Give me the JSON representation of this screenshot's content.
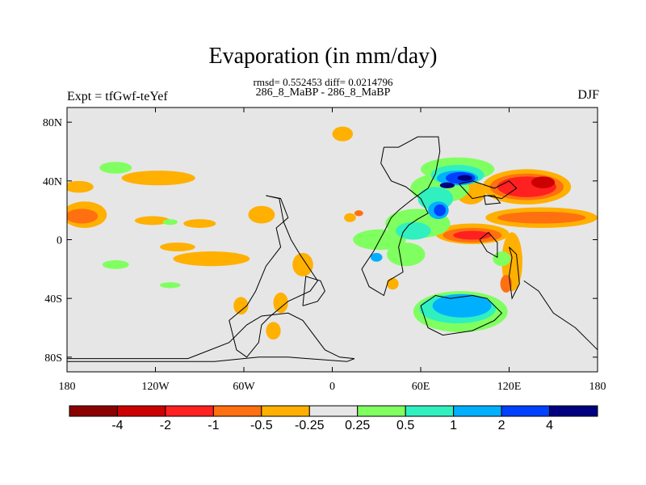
{
  "chart_data": {
    "type": "heatmap",
    "title": "Evaporation (in mm/day)",
    "stats_line": "rmsd= 0.552453 diff= 0.0214796",
    "period_line": "286_8_MaBP - 286_8_MaBP",
    "left_label": "Expt = tfGwf-teYef",
    "right_label": "DJF",
    "x_ticks": [
      {
        "value": -180,
        "label": "180"
      },
      {
        "value": -120,
        "label": "120W"
      },
      {
        "value": -60,
        "label": "60W"
      },
      {
        "value": 0,
        "label": "0"
      },
      {
        "value": 60,
        "label": "60E"
      },
      {
        "value": 120,
        "label": "120E"
      },
      {
        "value": 180,
        "label": "180"
      }
    ],
    "y_ticks": [
      {
        "value": 80,
        "label": "80N"
      },
      {
        "value": 40,
        "label": "40N"
      },
      {
        "value": 0,
        "label": "0"
      },
      {
        "value": -40,
        "label": "40S"
      },
      {
        "value": -80,
        "label": "80S"
      }
    ],
    "xlim": [
      -180,
      180
    ],
    "ylim": [
      -90,
      90
    ],
    "grid": false,
    "background_color": "#e6e6e6",
    "colorbar": {
      "colors": [
        "#8b0000",
        "#cc0000",
        "#ff2020",
        "#ff7010",
        "#ffb000",
        "#e6e6e6",
        "#80ff60",
        "#30f0c0",
        "#00b0ff",
        "#0040ff",
        "#000080"
      ],
      "labels": [
        {
          "boundary": 1,
          "label": "-4"
        },
        {
          "boundary": 2,
          "label": "-2"
        },
        {
          "boundary": 3,
          "label": "-1"
        },
        {
          "boundary": 4,
          "label": "-0.5"
        },
        {
          "boundary": 5,
          "label": "-0.25"
        },
        {
          "boundary": 6,
          "label": "0.25"
        },
        {
          "boundary": 7,
          "label": "0.5"
        },
        {
          "boundary": 8,
          "label": "1"
        },
        {
          "boundary": 9,
          "label": "2"
        },
        {
          "boundary": 10,
          "label": "4"
        }
      ]
    },
    "regions": [
      {
        "level": "-0.25",
        "color": "#ffb000",
        "lon": 7,
        "lat": 72,
        "rlon": 7,
        "rlat": 5
      },
      {
        "level": "-0.25",
        "color": "#ffb000",
        "lon": -118,
        "lat": 42,
        "rlon": 25,
        "rlat": 5
      },
      {
        "level": "-0.25",
        "color": "#ffb000",
        "lon": -172,
        "lat": 36,
        "rlon": 10,
        "rlat": 4
      },
      {
        "level": "-0.25",
        "color": "#ffb000",
        "lon": -168,
        "lat": 17,
        "rlon": 15,
        "rlat": 9
      },
      {
        "level": "-0.5",
        "color": "#ff7010",
        "lon": -170,
        "lat": 16,
        "rlon": 11,
        "rlat": 5
      },
      {
        "level": "-0.25",
        "color": "#ffb000",
        "lon": -122,
        "lat": 13,
        "rlon": 12,
        "rlat": 3
      },
      {
        "level": "-0.25",
        "color": "#ffb000",
        "lon": -90,
        "lat": 11,
        "rlon": 11,
        "rlat": 3
      },
      {
        "level": "-0.25",
        "color": "#ffb000",
        "lon": -48,
        "lat": 17,
        "rlon": 9,
        "rlat": 6
      },
      {
        "level": "-0.25",
        "color": "#ffb000",
        "lon": -82,
        "lat": -13,
        "rlon": 26,
        "rlat": 5
      },
      {
        "level": "-0.25",
        "color": "#ffb000",
        "lon": -105,
        "lat": -5,
        "rlon": 12,
        "rlat": 3
      },
      {
        "level": "-0.25",
        "color": "#ffb000",
        "lon": -20,
        "lat": -17,
        "rlon": 7,
        "rlat": 8
      },
      {
        "level": "-0.25",
        "color": "#ffb000",
        "lon": -62,
        "lat": -45,
        "rlon": 5,
        "rlat": 6
      },
      {
        "level": "-0.25",
        "color": "#ffb000",
        "lon": -35,
        "lat": -43,
        "rlon": 5,
        "rlat": 7
      },
      {
        "level": "-0.25",
        "color": "#ffb000",
        "lon": -40,
        "lat": -62,
        "rlon": 5,
        "rlat": 6
      },
      {
        "level": "-0.25",
        "color": "#ffb000",
        "lon": 12,
        "lat": 15,
        "rlon": 4,
        "rlat": 3
      },
      {
        "level": "-0.5",
        "color": "#ff7010",
        "lon": 18,
        "lat": 18,
        "rlon": 3,
        "rlat": 2
      },
      {
        "level": "-0.25",
        "color": "#ffb000",
        "lon": 41,
        "lat": -30,
        "rlon": 4,
        "rlat": 4
      },
      {
        "level": "-0.25",
        "color": "#ffb000",
        "lon": 94,
        "lat": 32,
        "rlon": 10,
        "rlat": 8
      },
      {
        "level": "-0.25",
        "color": "#ffb000",
        "lon": 142,
        "lat": 15,
        "rlon": 38,
        "rlat": 7
      },
      {
        "level": "-0.5",
        "color": "#ff7010",
        "lon": 142,
        "lat": 15,
        "rlon": 30,
        "rlat": 4
      },
      {
        "level": "-0.25",
        "color": "#ffb000",
        "lon": 95,
        "lat": 4,
        "rlon": 25,
        "rlat": 7
      },
      {
        "level": "-0.5",
        "color": "#ff7010",
        "lon": 95,
        "lat": 3,
        "rlon": 20,
        "rlat": 5
      },
      {
        "level": "-1",
        "color": "#ff2020",
        "lon": 95,
        "lat": 3,
        "rlon": 13,
        "rlat": 3
      },
      {
        "level": "-0.25",
        "color": "#ffb000",
        "lon": 122,
        "lat": -15,
        "rlon": 7,
        "rlat": 20
      },
      {
        "level": "-0.5",
        "color": "#ff7010",
        "lon": 118,
        "lat": -30,
        "rlon": 4,
        "rlat": 6
      },
      {
        "level": "-0.25",
        "color": "#ffb000",
        "lon": 132,
        "lat": 36,
        "rlon": 30,
        "rlat": 12
      },
      {
        "level": "-0.5",
        "color": "#ff7010",
        "lon": 132,
        "lat": 36,
        "rlon": 25,
        "rlat": 9
      },
      {
        "level": "-1",
        "color": "#ff2020",
        "lon": 132,
        "lat": 36,
        "rlon": 20,
        "rlat": 7
      },
      {
        "level": "-2",
        "color": "#cc0000",
        "lon": 143,
        "lat": 39,
        "rlon": 8,
        "rlat": 4
      },
      {
        "level": "-0.25",
        "color": "#ffb000",
        "lon": 123,
        "lat": -3,
        "rlon": 3,
        "rlat": 2
      },
      {
        "level": "0.25",
        "color": "#80ff60",
        "lon": 32,
        "lat": 0,
        "rlon": 18,
        "rlat": 7
      },
      {
        "level": "0.25",
        "color": "#80ff60",
        "lon": -147,
        "lat": 49,
        "rlon": 11,
        "rlat": 4
      },
      {
        "level": "0.25",
        "color": "#80ff60",
        "lon": -147,
        "lat": -17,
        "rlon": 9,
        "rlat": 3
      },
      {
        "level": "0.25",
        "color": "#80ff60",
        "lon": -110,
        "lat": -31,
        "rlon": 7,
        "rlat": 2
      },
      {
        "level": "0.25",
        "color": "#80ff60",
        "lon": -110,
        "lat": 12,
        "rlon": 5,
        "rlat": 2
      },
      {
        "level": "0.25",
        "color": "#80ff60",
        "lon": 115,
        "lat": -13,
        "rlon": 6,
        "rlat": 5
      },
      {
        "level": "0.25",
        "color": "#80ff60",
        "lon": 85,
        "lat": 48,
        "rlon": 25,
        "rlat": 8
      },
      {
        "level": "0.25",
        "color": "#80ff60",
        "lon": 73,
        "lat": 35,
        "rlon": 20,
        "rlat": 10
      },
      {
        "level": "0.25",
        "color": "#80ff60",
        "lon": 58,
        "lat": 11,
        "rlon": 22,
        "rlat": 10
      },
      {
        "level": "0.25",
        "color": "#80ff60",
        "lon": 50,
        "lat": -10,
        "rlon": 13,
        "rlat": 8
      },
      {
        "level": "0.25",
        "color": "#80ff60",
        "lon": 87,
        "lat": -49,
        "rlon": 32,
        "rlat": 14
      },
      {
        "level": "0.5",
        "color": "#30f0c0",
        "lon": 85,
        "lat": 44,
        "rlon": 18,
        "rlat": 7
      },
      {
        "level": "0.5",
        "color": "#30f0c0",
        "lon": 70,
        "lat": 28,
        "rlon": 12,
        "rlat": 8
      },
      {
        "level": "0.5",
        "color": "#30f0c0",
        "lon": 55,
        "lat": 6,
        "rlon": 12,
        "rlat": 6
      },
      {
        "level": "0.5",
        "color": "#30f0c0",
        "lon": 85,
        "lat": -47,
        "rlon": 26,
        "rlat": 10
      },
      {
        "level": "1",
        "color": "#00b0ff",
        "lon": 85,
        "lat": 42,
        "rlon": 14,
        "rlat": 5
      },
      {
        "level": "1",
        "color": "#00b0ff",
        "lon": 72,
        "lat": 20,
        "rlon": 7,
        "rlat": 6
      },
      {
        "level": "1",
        "color": "#00b0ff",
        "lon": 88,
        "lat": -45,
        "rlon": 20,
        "rlat": 8
      },
      {
        "level": "1",
        "color": "#00b0ff",
        "lon": 30,
        "lat": -12,
        "rlon": 4,
        "rlat": 3
      },
      {
        "level": "2",
        "color": "#0040ff",
        "lon": 87,
        "lat": 42,
        "rlon": 10,
        "rlat": 4
      },
      {
        "level": "2",
        "color": "#0040ff",
        "lon": 73,
        "lat": 20,
        "rlon": 4,
        "rlat": 4
      },
      {
        "level": "4",
        "color": "#000080",
        "lon": 90,
        "lat": 42,
        "rlon": 5,
        "rlat": 2
      },
      {
        "level": "4",
        "color": "#000080",
        "lon": 78,
        "lat": 37,
        "rlon": 5,
        "rlat": 2
      }
    ],
    "coastlines": [
      [
        [
          -180,
          -81
        ],
        [
          -98,
          -81
        ],
        [
          -70,
          -70
        ],
        [
          -58,
          -58
        ],
        [
          -48,
          -52
        ],
        [
          -30,
          -50
        ],
        [
          -20,
          -55
        ],
        [
          -5,
          -75
        ],
        [
          5,
          -80
        ],
        [
          15,
          -81
        ],
        [
          10,
          -83
        ],
        [
          -30,
          -80
        ],
        [
          -50,
          -80
        ],
        [
          -80,
          -83
        ],
        [
          -180,
          -83
        ]
      ],
      [
        [
          -45,
          30
        ],
        [
          -35,
          28
        ],
        [
          -30,
          15
        ],
        [
          -38,
          8
        ],
        [
          -35,
          -5
        ],
        [
          -45,
          -18
        ],
        [
          -52,
          -35
        ],
        [
          -58,
          -45
        ],
        [
          -70,
          -55
        ],
        [
          -65,
          -75
        ],
        [
          -58,
          -80
        ],
        [
          -50,
          -70
        ],
        [
          -48,
          -58
        ],
        [
          -42,
          -52
        ],
        [
          -30,
          -42
        ],
        [
          -15,
          -35
        ],
        [
          -10,
          -28
        ],
        [
          -22,
          -10
        ],
        [
          -28,
          0
        ],
        [
          -33,
          12
        ],
        [
          -36,
          28
        ],
        [
          -45,
          30
        ]
      ],
      [
        [
          35,
          63
        ],
        [
          45,
          63
        ],
        [
          58,
          70
        ],
        [
          72,
          70
        ],
        [
          73,
          60
        ],
        [
          70,
          45
        ],
        [
          65,
          35
        ],
        [
          55,
          28
        ],
        [
          50,
          24
        ],
        [
          45,
          20
        ],
        [
          40,
          15
        ],
        [
          35,
          5
        ],
        [
          28,
          -8
        ],
        [
          20,
          -20
        ],
        [
          25,
          -32
        ],
        [
          35,
          -38
        ],
        [
          38,
          -28
        ],
        [
          48,
          -22
        ],
        [
          45,
          -5
        ],
        [
          48,
          5
        ],
        [
          52,
          10
        ],
        [
          58,
          14
        ],
        [
          65,
          18
        ],
        [
          60,
          28
        ],
        [
          50,
          36
        ],
        [
          40,
          40
        ],
        [
          33,
          52
        ],
        [
          35,
          63
        ]
      ],
      [
        [
          -20,
          -45
        ],
        [
          -10,
          -42
        ],
        [
          -5,
          -35
        ],
        [
          -8,
          -28
        ],
        [
          -18,
          -25
        ],
        [
          -20,
          -45
        ]
      ],
      [
        [
          60,
          -45
        ],
        [
          65,
          -60
        ],
        [
          75,
          -65
        ],
        [
          95,
          -62
        ],
        [
          110,
          -55
        ],
        [
          115,
          -50
        ],
        [
          105,
          -40
        ],
        [
          95,
          -38
        ],
        [
          80,
          -40
        ],
        [
          70,
          -38
        ],
        [
          60,
          -45
        ]
      ],
      [
        [
          100,
          0
        ],
        [
          105,
          -8
        ],
        [
          112,
          -12
        ],
        [
          112,
          -2
        ],
        [
          106,
          5
        ],
        [
          100,
          0
        ]
      ],
      [
        [
          120,
          -5
        ],
        [
          125,
          -10
        ],
        [
          127,
          -30
        ],
        [
          122,
          -40
        ],
        [
          120,
          -25
        ],
        [
          122,
          -12
        ],
        [
          120,
          -5
        ]
      ],
      [
        [
          86,
          38
        ],
        [
          95,
          40
        ],
        [
          110,
          35
        ],
        [
          120,
          40
        ],
        [
          125,
          35
        ],
        [
          115,
          28
        ],
        [
          105,
          30
        ],
        [
          95,
          28
        ],
        [
          86,
          38
        ]
      ],
      [
        [
          103,
          30
        ],
        [
          110,
          30
        ],
        [
          114,
          25
        ],
        [
          104,
          24
        ],
        [
          103,
          30
        ]
      ],
      [
        [
          130,
          -28
        ],
        [
          140,
          -35
        ],
        [
          150,
          -50
        ],
        [
          165,
          -60
        ],
        [
          175,
          -70
        ],
        [
          180,
          -75
        ]
      ]
    ]
  }
}
